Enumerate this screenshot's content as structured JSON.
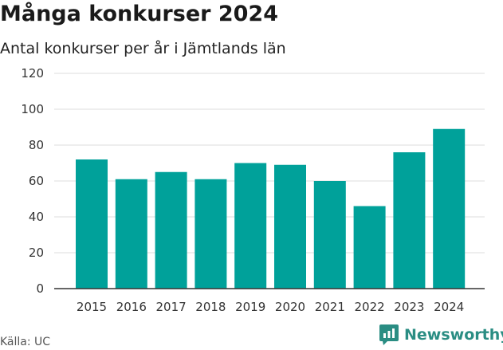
{
  "header": {
    "title": "Många konkurser 2024",
    "subtitle": "Antal konkurser per år i Jämtlands län"
  },
  "footer": {
    "source": "Källa: UC",
    "brand": "Newsworthy",
    "brand_icon": "newsworthy-logo-icon"
  },
  "colors": {
    "bar": "#00a19a",
    "grid": "#dddddd",
    "brand": "#2a8d83"
  },
  "chart_data": {
    "type": "bar",
    "title": "Många konkurser 2024",
    "subtitle": "Antal konkurser per år i Jämtlands län",
    "categories": [
      "2015",
      "2016",
      "2017",
      "2018",
      "2019",
      "2020",
      "2021",
      "2022",
      "2023",
      "2024"
    ],
    "values": [
      72,
      61,
      65,
      61,
      70,
      69,
      60,
      46,
      76,
      89
    ],
    "ylim": [
      0,
      120
    ],
    "yticks": [
      0,
      20,
      40,
      60,
      80,
      100,
      120
    ],
    "xlabel": "",
    "ylabel": "",
    "grid": true,
    "legend": "none"
  }
}
